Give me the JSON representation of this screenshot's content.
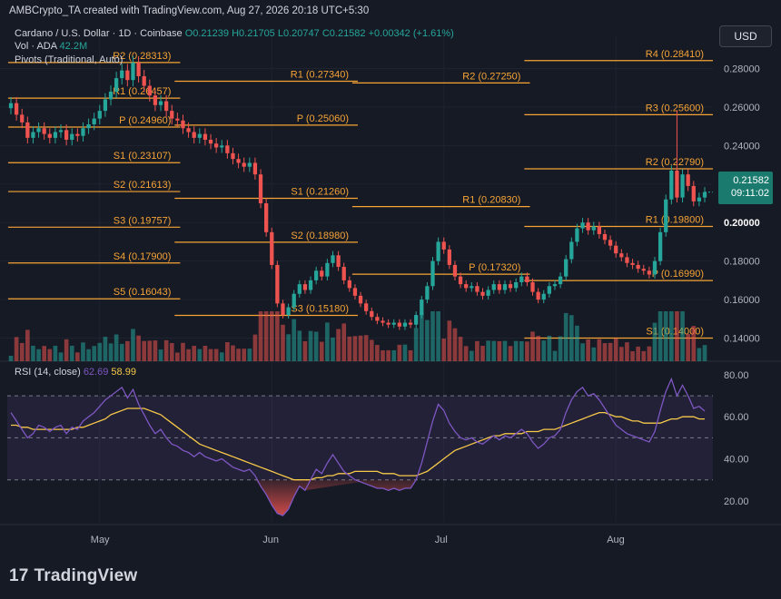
{
  "header": {
    "top_line": "AMBCrypto_TA created with TradingView.com, Aug 27, 2026 20:18 UTC+5:30",
    "symbol": "Cardano / U.S. Dollar · 1D · Coinbase",
    "ohlc": {
      "o": "O0.21239",
      "h": "H0.21705",
      "l": "L0.20747",
      "c": "C0.21582",
      "chg": "+0.00342 (+1.61%)"
    },
    "volume_label": "Vol · ADA",
    "volume_value": "42.2M",
    "pivots_label": "Pivots (Traditional, Auto)",
    "rsi_label": "RSI (14, close)",
    "rsi_value": "62.69",
    "rsi_ma_value": "58.99"
  },
  "currency": "USD",
  "price_label": {
    "price": "0.21582",
    "countdown": "09:11:02"
  },
  "logo": {
    "mark": "17",
    "text": "TradingView"
  },
  "colors": {
    "up": "#26a69a",
    "down": "#ef5350",
    "pivot": "#f7a435",
    "rsi": "#7e57c2",
    "rsi_ma": "#f7c948",
    "background": "#161a25"
  },
  "chart_data": [
    {
      "type": "candlestick",
      "title": "Cardano / U.S. Dollar · 1D · Coinbase",
      "x_ticks": [
        "May",
        "Jun",
        "Jul",
        "Aug"
      ],
      "y_ticks": [
        "0.14000",
        "0.16000",
        "0.18000",
        "0.20000",
        "0.22000",
        "0.24000",
        "0.26000",
        "0.28000"
      ],
      "y_ticks_bold": [
        "0.20000"
      ],
      "ylim": [
        0.128,
        0.292
      ],
      "closes": [
        0.262,
        0.256,
        0.252,
        0.244,
        0.247,
        0.249,
        0.246,
        0.244,
        0.247,
        0.248,
        0.243,
        0.246,
        0.245,
        0.249,
        0.251,
        0.254,
        0.258,
        0.264,
        0.268,
        0.275,
        0.279,
        0.274,
        0.283,
        0.276,
        0.271,
        0.266,
        0.261,
        0.263,
        0.258,
        0.254,
        0.253,
        0.249,
        0.247,
        0.244,
        0.246,
        0.243,
        0.241,
        0.239,
        0.24,
        0.236,
        0.233,
        0.231,
        0.229,
        0.231,
        0.225,
        0.21,
        0.195,
        0.178,
        0.158,
        0.152,
        0.156,
        0.163,
        0.168,
        0.165,
        0.17,
        0.175,
        0.172,
        0.179,
        0.183,
        0.177,
        0.17,
        0.166,
        0.162,
        0.158,
        0.154,
        0.151,
        0.149,
        0.148,
        0.147,
        0.148,
        0.146,
        0.148,
        0.147,
        0.152,
        0.16,
        0.167,
        0.18,
        0.19,
        0.186,
        0.178,
        0.172,
        0.168,
        0.166,
        0.167,
        0.164,
        0.162,
        0.165,
        0.168,
        0.165,
        0.168,
        0.166,
        0.169,
        0.172,
        0.169,
        0.164,
        0.16,
        0.163,
        0.167,
        0.168,
        0.172,
        0.181,
        0.19,
        0.197,
        0.2,
        0.196,
        0.198,
        0.194,
        0.191,
        0.188,
        0.184,
        0.182,
        0.179,
        0.178,
        0.176,
        0.175,
        0.173,
        0.18,
        0.195,
        0.212,
        0.227,
        0.213,
        0.225,
        0.219,
        0.211,
        0.213,
        0.2158
      ],
      "highs_notable": [
        {
          "date_index": 120,
          "high": 0.258
        }
      ],
      "pivot_levels": [
        {
          "label": "R4 (0.28410)",
          "value": 0.2841,
          "period": "Aug"
        },
        {
          "label": "R3 (0.25600)",
          "value": 0.256,
          "period": "Aug"
        },
        {
          "label": "R2 (0.22790)",
          "value": 0.2279,
          "period": "Aug"
        },
        {
          "label": "R1 (0.19800)",
          "value": 0.198,
          "period": "Aug"
        },
        {
          "label": "P (0.16990)",
          "value": 0.1699,
          "period": "Aug"
        },
        {
          "label": "S1 (0.14000)",
          "value": 0.14,
          "period": "Aug"
        },
        {
          "label": "R2 (0.27250)",
          "value": 0.2725,
          "period": "Jul"
        },
        {
          "label": "R1 (0.20830)",
          "value": 0.2083,
          "period": "Jul"
        },
        {
          "label": "P (0.17320)",
          "value": 0.1732,
          "period": "Jul"
        },
        {
          "label": "R1 (0.27340)",
          "value": 0.2734,
          "period": "Jun"
        },
        {
          "label": "P (0.25060)",
          "value": 0.2506,
          "period": "Jun"
        },
        {
          "label": "S1 (0.21260)",
          "value": 0.2126,
          "period": "Jun"
        },
        {
          "label": "S2 (0.18980)",
          "value": 0.1898,
          "period": "Jun"
        },
        {
          "label": "S3 (0.15180)",
          "value": 0.1518,
          "period": "Jun"
        },
        {
          "label": "R2 (0.28313)",
          "value": 0.2831,
          "period": "May"
        },
        {
          "label": "R1 (0.26457)",
          "value": 0.2646,
          "period": "May"
        },
        {
          "label": "P (0.24960)",
          "value": 0.2496,
          "period": "May"
        },
        {
          "label": "S1 (0.23107)",
          "value": 0.2311,
          "period": "May"
        },
        {
          "label": "S2 (0.21613)",
          "value": 0.2161,
          "period": "May"
        },
        {
          "label": "S3 (0.19757)",
          "value": 0.1976,
          "period": "May"
        },
        {
          "label": "S4 (0.17900)",
          "value": 0.179,
          "period": "May"
        },
        {
          "label": "S5 (0.16043)",
          "value": 0.1604,
          "period": "May"
        }
      ]
    },
    {
      "type": "line",
      "title": "RSI (14, close)",
      "y_ticks": [
        "20.00",
        "40.00",
        "60.00",
        "80.00"
      ],
      "ylim": [
        10,
        83
      ],
      "bands": [
        30,
        50,
        70
      ],
      "series": [
        {
          "name": "RSI",
          "color": "#7e57c2",
          "values": [
            62,
            58,
            54,
            50,
            52,
            56,
            55,
            53,
            55,
            56,
            52,
            55,
            54,
            58,
            60,
            62,
            65,
            68,
            70,
            72,
            74,
            69,
            73,
            66,
            61,
            56,
            52,
            54,
            50,
            47,
            46,
            44,
            43,
            41,
            43,
            41,
            40,
            39,
            40,
            38,
            36,
            35,
            34,
            35,
            32,
            27,
            23,
            18,
            14,
            13,
            16,
            22,
            27,
            25,
            30,
            35,
            33,
            38,
            42,
            38,
            34,
            32,
            30,
            29,
            28,
            27,
            26,
            26,
            25,
            26,
            25,
            26,
            26,
            30,
            38,
            48,
            58,
            66,
            63,
            57,
            53,
            50,
            49,
            50,
            48,
            47,
            49,
            51,
            49,
            51,
            50,
            52,
            54,
            52,
            48,
            45,
            47,
            50,
            51,
            54,
            62,
            68,
            72,
            74,
            70,
            71,
            68,
            64,
            60,
            56,
            54,
            52,
            51,
            50,
            49,
            48,
            53,
            63,
            72,
            78,
            70,
            75,
            70,
            64,
            65,
            62.69
          ]
        },
        {
          "name": "RSI-based MA",
          "color": "#f7c948",
          "values": [
            56,
            56,
            55,
            55,
            54,
            54,
            54,
            54,
            54,
            54,
            54,
            54,
            55,
            55,
            56,
            57,
            58,
            59,
            61,
            62,
            63,
            64,
            64,
            64,
            64,
            63,
            62,
            61,
            59,
            57,
            55,
            53,
            51,
            49,
            47,
            46,
            45,
            44,
            43,
            42,
            41,
            40,
            39,
            38,
            37,
            36,
            35,
            34,
            33,
            32,
            31,
            30,
            30,
            30,
            30,
            31,
            31,
            32,
            32,
            33,
            33,
            33,
            34,
            34,
            34,
            34,
            34,
            33,
            33,
            33,
            32,
            32,
            32,
            32,
            33,
            34,
            36,
            38,
            40,
            42,
            44,
            45,
            46,
            47,
            48,
            49,
            50,
            51,
            51,
            52,
            52,
            52,
            52,
            53,
            53,
            53,
            54,
            54,
            54,
            55,
            56,
            57,
            58,
            59,
            60,
            61,
            62,
            62,
            61,
            60,
            60,
            59,
            58,
            58,
            57,
            57,
            57,
            57,
            58,
            59,
            59,
            60,
            60,
            60,
            59,
            58.99
          ]
        }
      ]
    }
  ]
}
